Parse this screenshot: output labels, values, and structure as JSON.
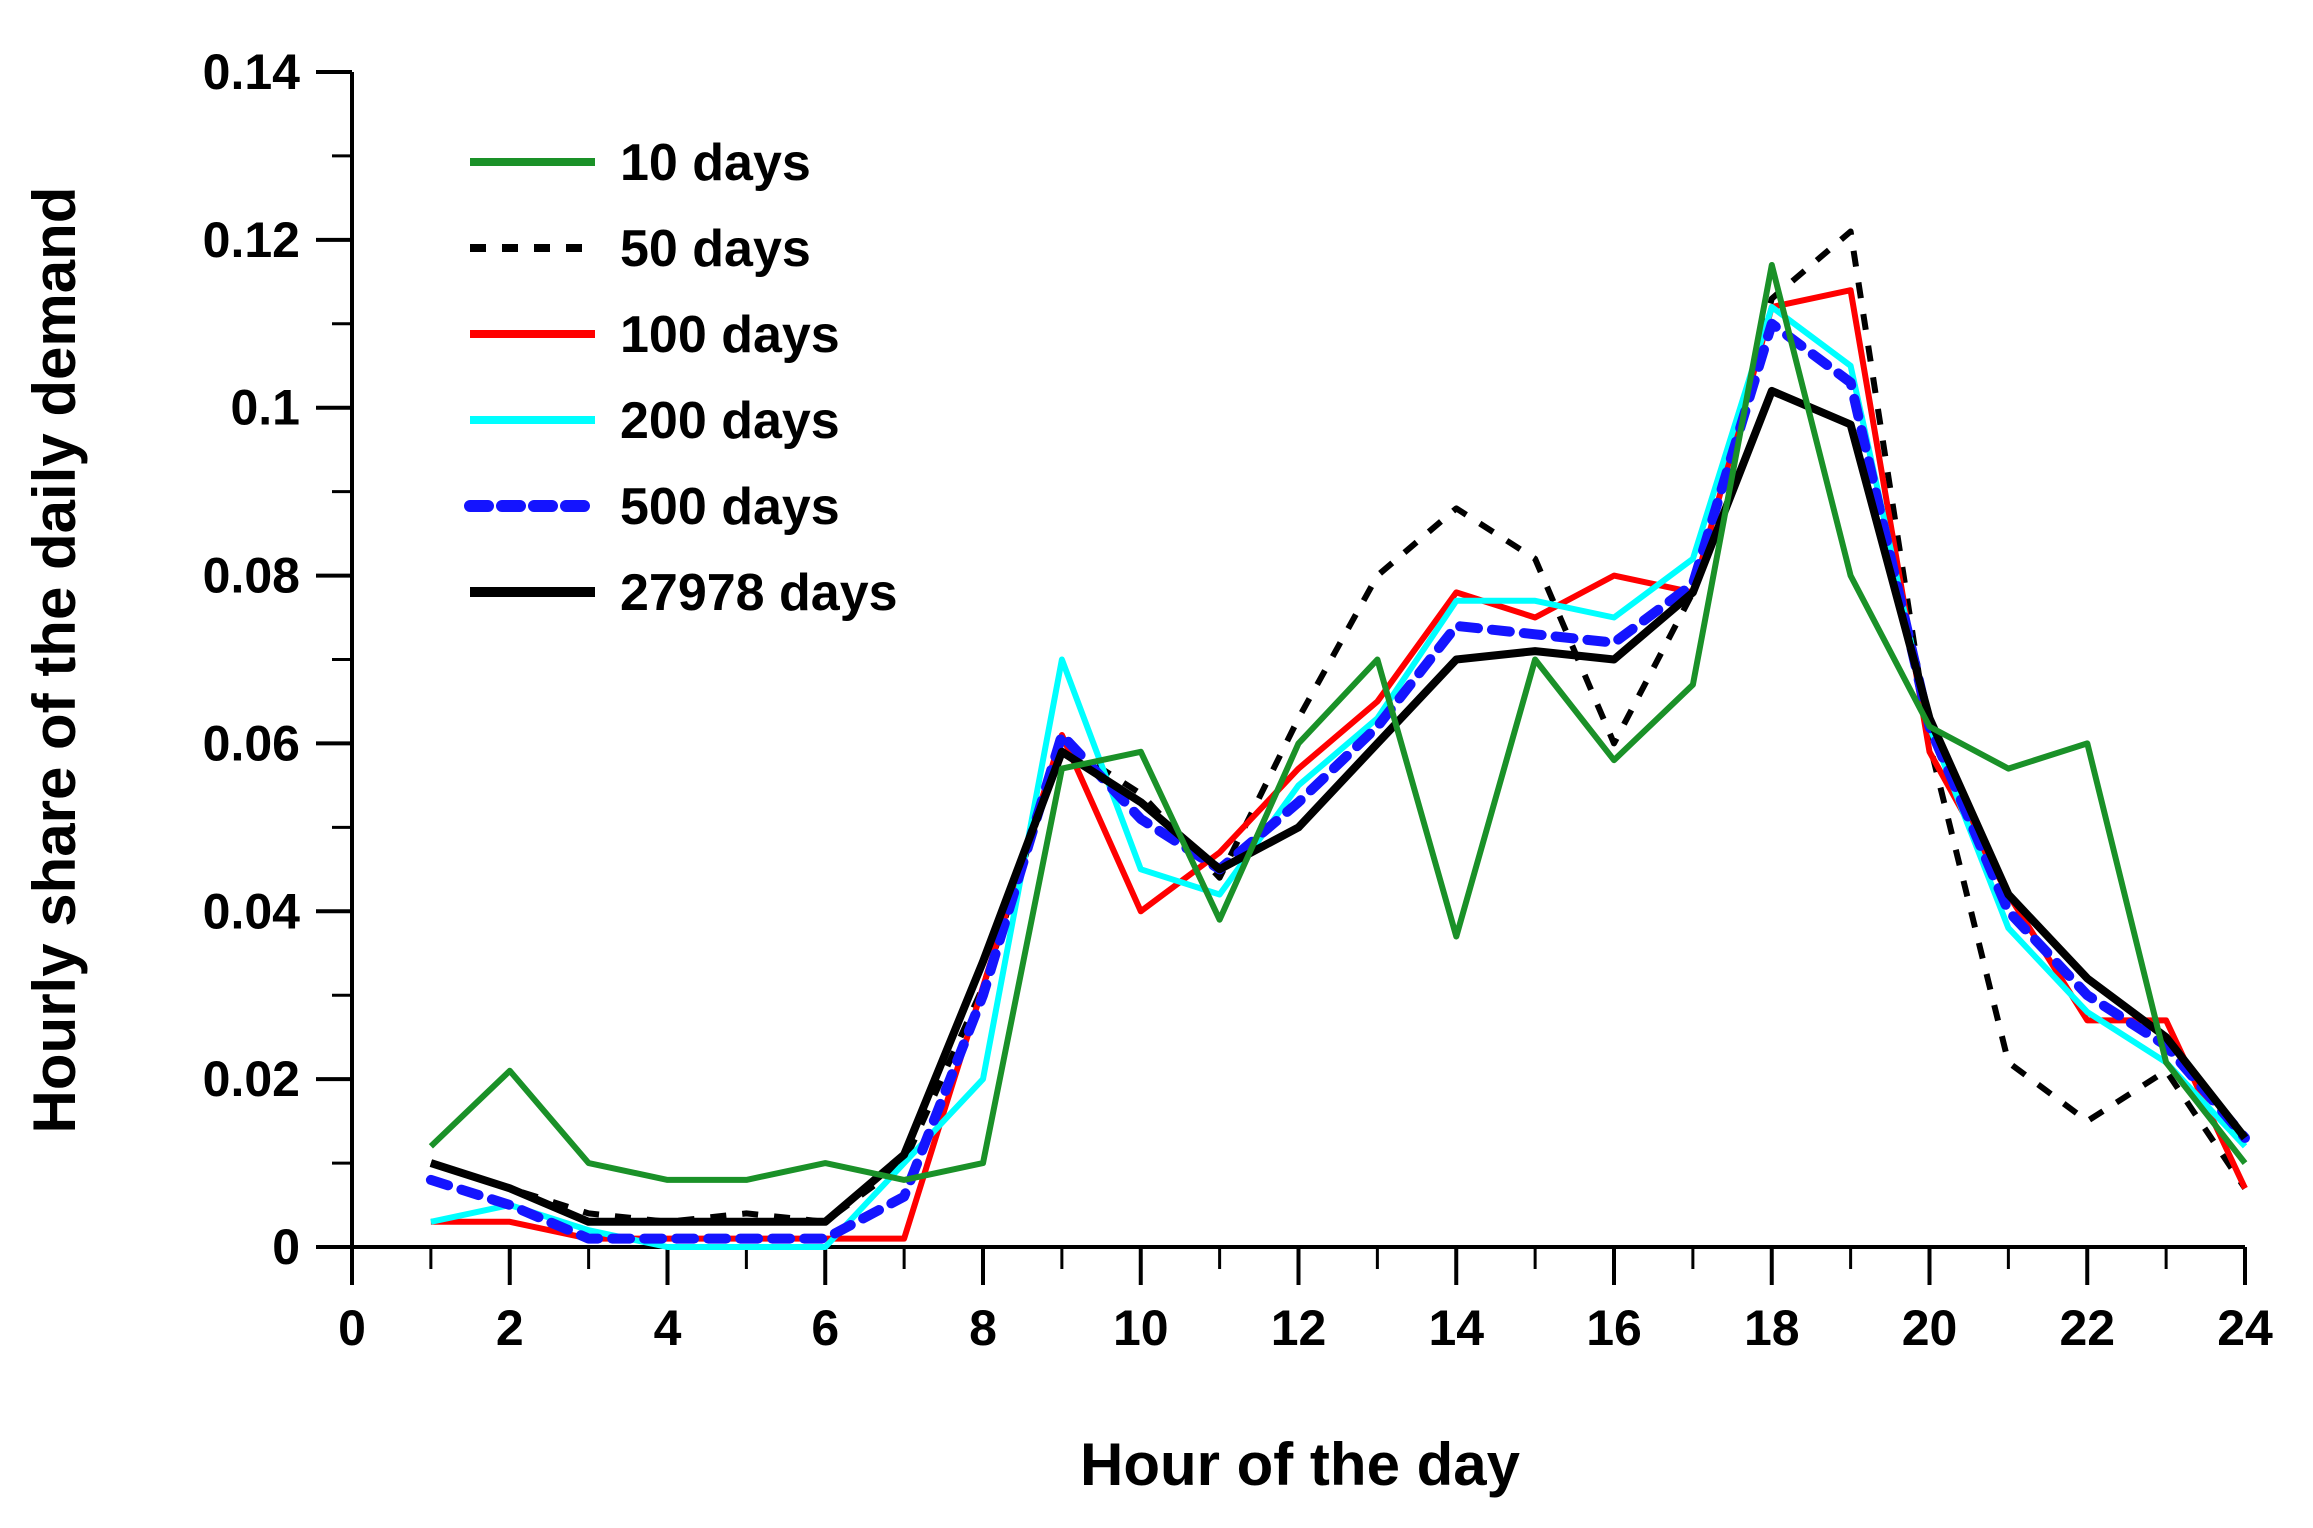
{
  "chart_data": {
    "type": "line",
    "title": "",
    "xlabel": "Hour of the day",
    "ylabel": "Hourly share of the daily demand",
    "xlim": [
      0,
      24
    ],
    "ylim": [
      0,
      0.14
    ],
    "x_ticks": [
      0,
      2,
      4,
      6,
      8,
      10,
      12,
      14,
      16,
      18,
      20,
      22,
      24
    ],
    "x_tick_labels": [
      "0",
      "2",
      "4",
      "6",
      "8",
      "10",
      "12",
      "14",
      "16",
      "18",
      "20",
      "22",
      "24"
    ],
    "y_ticks": [
      0,
      0.02,
      0.04,
      0.06,
      0.08,
      0.1,
      0.12,
      0.14
    ],
    "y_tick_labels": [
      "0",
      "0.02",
      "0.04",
      "0.06",
      "0.08",
      "0.1",
      "0.12",
      "0.14"
    ],
    "grid": false,
    "legend_position": "top-left",
    "x": [
      1,
      2,
      3,
      4,
      5,
      6,
      7,
      8,
      9,
      10,
      11,
      12,
      13,
      14,
      15,
      16,
      17,
      18,
      19,
      20,
      21,
      22,
      23,
      24
    ],
    "series": [
      {
        "name": "10 days",
        "color": "#1a9128",
        "style": "solid",
        "values": [
          0.012,
          0.021,
          0.01,
          0.008,
          0.008,
          0.01,
          0.008,
          0.01,
          0.057,
          0.059,
          0.039,
          0.06,
          0.07,
          0.037,
          0.07,
          0.058,
          0.067,
          0.117,
          0.08,
          0.062,
          0.057,
          0.06,
          0.022,
          0.01
        ]
      },
      {
        "name": "50 days",
        "color": "#000000",
        "style": "dashed",
        "values": [
          0.01,
          0.007,
          0.004,
          0.003,
          0.004,
          0.003,
          0.01,
          0.031,
          0.06,
          0.054,
          0.044,
          0.063,
          0.08,
          0.088,
          0.082,
          0.06,
          0.078,
          0.113,
          0.121,
          0.06,
          0.022,
          0.015,
          0.021,
          0.007
        ]
      },
      {
        "name": "100 days",
        "color": "#ff0000",
        "style": "solid",
        "values": [
          0.003,
          0.003,
          0.001,
          0.001,
          0.001,
          0.001,
          0.001,
          0.031,
          0.061,
          0.04,
          0.047,
          0.057,
          0.065,
          0.078,
          0.075,
          0.08,
          0.078,
          0.112,
          0.114,
          0.059,
          0.042,
          0.027,
          0.027,
          0.007
        ]
      },
      {
        "name": "200 days",
        "color": "#00ffff",
        "style": "solid",
        "values": [
          0.003,
          0.005,
          0.002,
          0.0,
          0.0,
          0.0,
          0.01,
          0.02,
          0.07,
          0.045,
          0.042,
          0.055,
          0.063,
          0.077,
          0.077,
          0.075,
          0.082,
          0.112,
          0.105,
          0.062,
          0.038,
          0.028,
          0.022,
          0.012
        ]
      },
      {
        "name": "500 days",
        "color": "#1414ff",
        "style": "dotted",
        "values": [
          0.008,
          0.005,
          0.001,
          0.001,
          0.001,
          0.001,
          0.006,
          0.03,
          0.061,
          0.051,
          0.045,
          0.053,
          0.062,
          0.074,
          0.073,
          0.072,
          0.079,
          0.11,
          0.103,
          0.062,
          0.04,
          0.03,
          0.024,
          0.013
        ]
      },
      {
        "name": "27978 days",
        "color": "#000000",
        "style": "solid-thick",
        "values": [
          0.01,
          0.007,
          0.003,
          0.003,
          0.003,
          0.003,
          0.011,
          0.034,
          0.059,
          0.053,
          0.045,
          0.05,
          0.06,
          0.07,
          0.071,
          0.07,
          0.078,
          0.102,
          0.098,
          0.063,
          0.042,
          0.032,
          0.025,
          0.013
        ]
      }
    ]
  }
}
